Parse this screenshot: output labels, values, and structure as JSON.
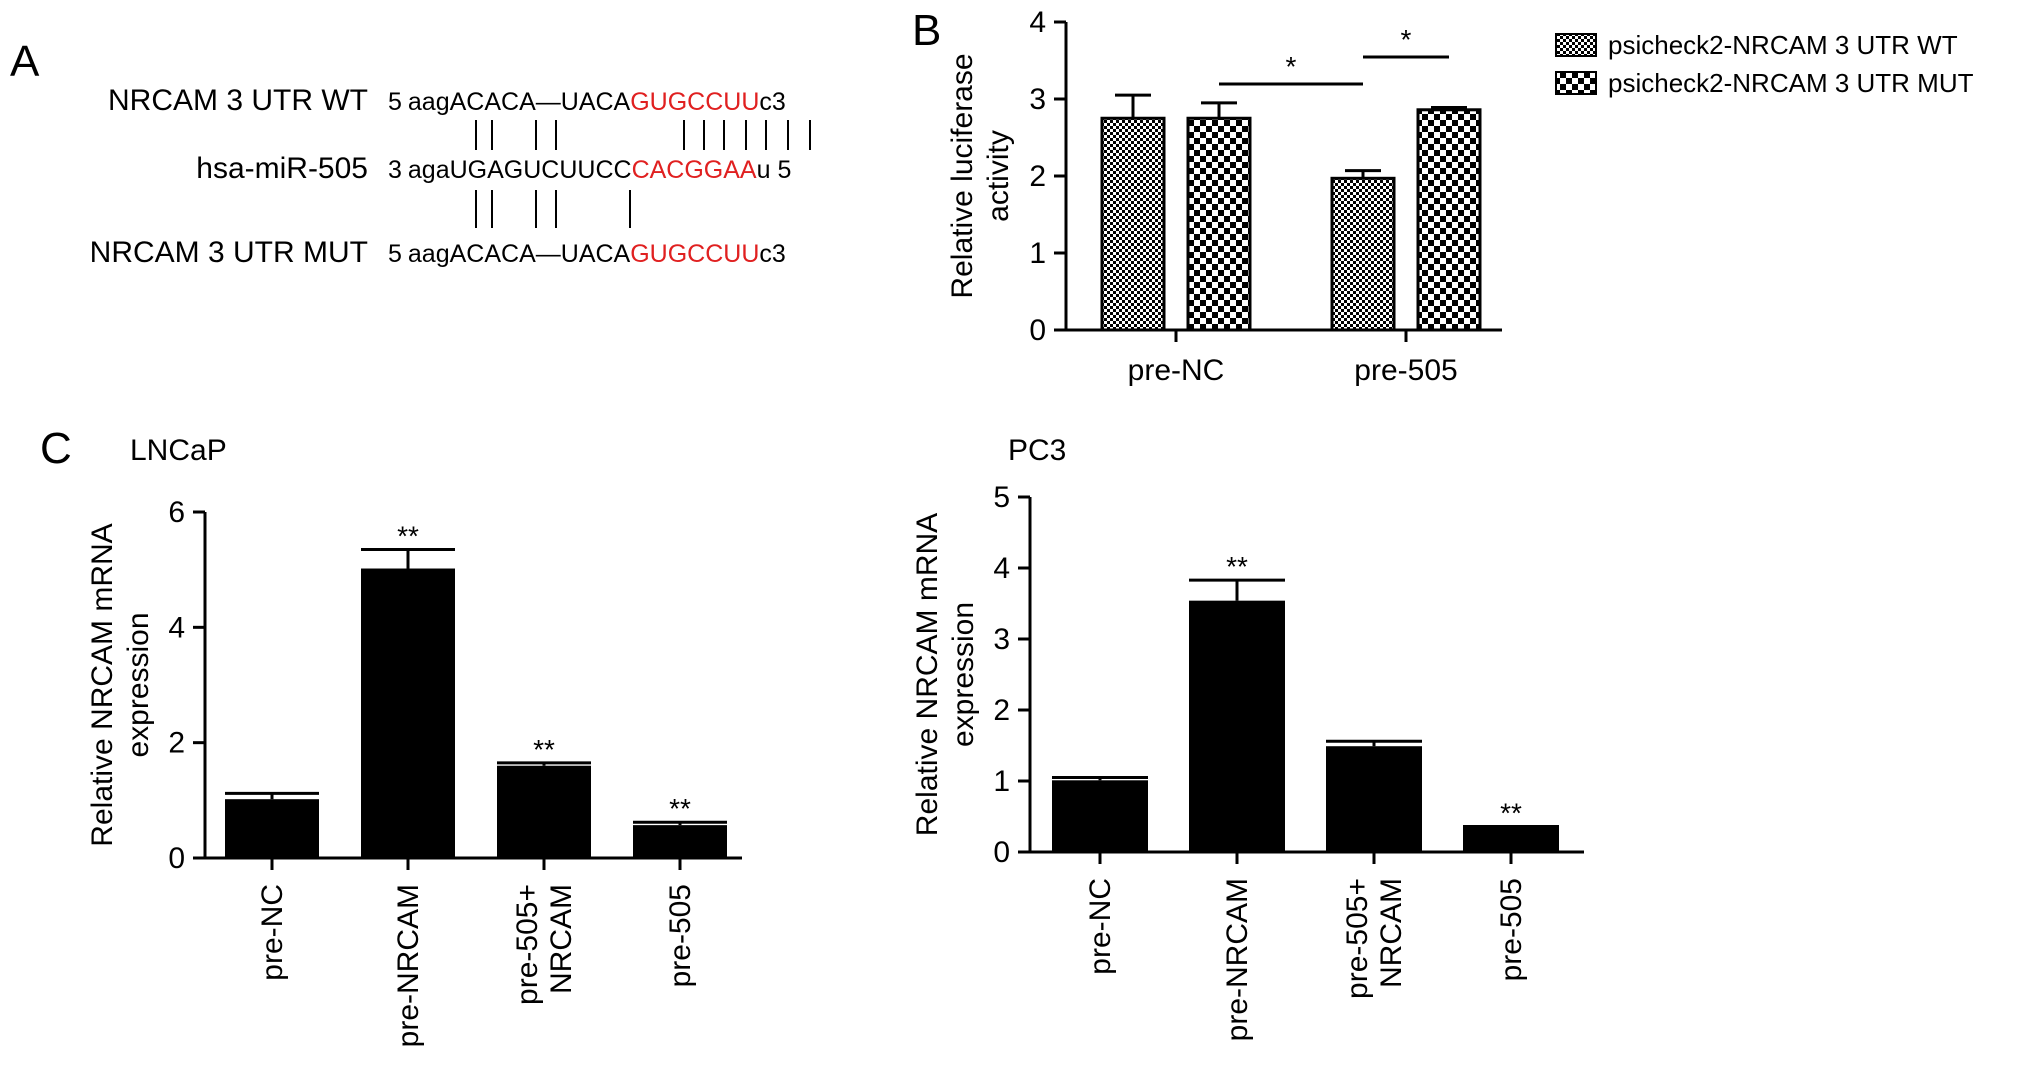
{
  "panels": {
    "a": "A",
    "b": "B",
    "c": "C"
  },
  "sequence_panel": {
    "rows": [
      {
        "label": "NRCAM 3 UTR WT",
        "prefix": "5",
        "lower": "aag",
        "upper": "ACACA",
        "gap": "—",
        "mid": "UACA",
        "site": "GUGCCUU",
        "suffix": "c3"
      },
      {
        "label": "hsa-miR-505",
        "prefix": "3",
        "lower": "aga",
        "upper": "UGAGUCUUCC",
        "gap": "",
        "mid": "",
        "site": "CACGGAA",
        "suffix": "u 5"
      },
      {
        "label": "NRCAM 3 UTR MUT",
        "prefix": "5",
        "lower": "aag",
        "upper": "ACACA",
        "gap": "—",
        "mid": "UACA",
        "site": "GUGCCUU",
        "suffix": "c3"
      }
    ],
    "highlight_color": "#e02020"
  },
  "chart_data": [
    {
      "id": "B",
      "type": "bar",
      "title": "",
      "categories": [
        "pre-NC",
        "pre-505"
      ],
      "series": [
        {
          "name": "psicheck2-NRCAM 3 UTR WT",
          "pattern": "dense-checker",
          "values": [
            2.75,
            1.97
          ],
          "errors": [
            0.3,
            0.1
          ]
        },
        {
          "name": "psicheck2-NRCAM 3 UTR MUT",
          "pattern": "coarse-checker",
          "values": [
            2.75,
            2.86
          ],
          "errors": [
            0.2,
            0.03
          ]
        }
      ],
      "xlabel": "",
      "ylabel": "Relative luciferase activity",
      "ylim": [
        0,
        4
      ],
      "yticks": [
        "0",
        "1",
        "2",
        "3",
        "4"
      ],
      "significance": [
        {
          "label": "*",
          "from": "pre-NC MUT",
          "to": "pre-505 WT"
        },
        {
          "label": "*",
          "from": "pre-505 WT",
          "to": "pre-505 MUT"
        }
      ],
      "legend_position": "right",
      "grid": false
    },
    {
      "id": "C-LNCaP",
      "type": "bar",
      "title": "LNCaP",
      "categories": [
        "pre-NC",
        "pre-NRCAM",
        "pre-505+\nNRCAM",
        "pre-505"
      ],
      "values": [
        1.02,
        5.02,
        1.6,
        0.57
      ],
      "errors": [
        0.1,
        0.33,
        0.05,
        0.05
      ],
      "annotations": [
        "",
        "**",
        "**",
        "**"
      ],
      "xlabel": "",
      "ylabel": "Relative NRCAM mRNA expression",
      "ylim": [
        0,
        6
      ],
      "yticks": [
        "0",
        "2",
        "4",
        "6"
      ],
      "color": "#000000",
      "grid": false
    },
    {
      "id": "C-PC3",
      "type": "bar",
      "title": "PC3",
      "categories": [
        "pre-NC",
        "pre-NRCAM",
        "pre-505+\nNRCAM",
        "pre-505"
      ],
      "values": [
        1.01,
        3.54,
        1.49,
        0.34
      ],
      "errors": [
        0.04,
        0.29,
        0.07,
        0.02
      ],
      "annotations": [
        "",
        "**",
        "",
        "**"
      ],
      "xlabel": "",
      "ylabel": "Relative NRCAM mRNA expression",
      "ylim": [
        0,
        5
      ],
      "yticks": [
        "0",
        "1",
        "2",
        "3",
        "4",
        "5"
      ],
      "color": "#000000",
      "grid": false
    }
  ]
}
